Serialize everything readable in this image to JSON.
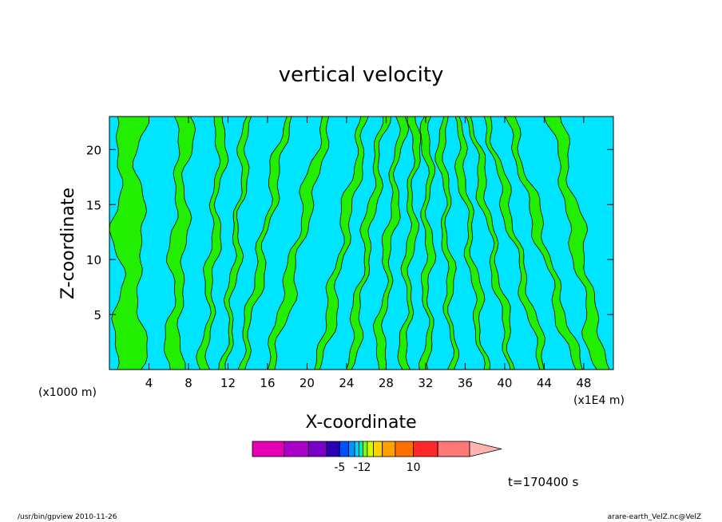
{
  "chart_data": {
    "type": "contour",
    "title": "vertical velocity",
    "xlabel": "X-coordinate",
    "ylabel": "Z-coordinate",
    "x_unit_left": "(x1000 m)",
    "x_unit_right": "(x1E4 m)",
    "x_range": [
      0,
      51
    ],
    "y_range": [
      0,
      23
    ],
    "x_ticks": [
      4,
      8,
      12,
      16,
      20,
      24,
      28,
      32,
      36,
      40,
      44,
      48
    ],
    "y_ticks": [
      5,
      10,
      15,
      20
    ],
    "time_label": "t=170400 s",
    "colors": {
      "negative": "#00e5ff",
      "positive": "#22ee00",
      "contour_line": "#000000"
    },
    "colorbar": {
      "colors": [
        "#e600b4",
        "#aa00c8",
        "#7a00c8",
        "#2a00b4",
        "#0050ff",
        "#0096ff",
        "#00d2ff",
        "#00f0b4",
        "#78ff00",
        "#d2ff00",
        "#ffd200",
        "#ffa000",
        "#ff6e00",
        "#ff2828",
        "#ff7878",
        "#ffb4b4"
      ],
      "tick_labels": [
        {
          "label": "-5",
          "index": 3
        },
        {
          "label": "-1",
          "index": 6
        },
        {
          "label": "2",
          "index": 8
        },
        {
          "label": "10",
          "index": 12
        }
      ]
    },
    "bands": [
      {
        "x": 2,
        "w": 1.4,
        "amp": 1.0,
        "tilt": 0.0
      },
      {
        "x": 7,
        "w": 1.2,
        "amp": 0.6,
        "tilt": 0.05
      },
      {
        "x": 10.5,
        "w": 0.6,
        "amp": 0.7,
        "tilt": 0.08
      },
      {
        "x": 12.8,
        "w": 0.4,
        "amp": 0.8,
        "tilt": 0.1
      },
      {
        "x": 15.5,
        "w": 0.7,
        "amp": 0.6,
        "tilt": 0.2
      },
      {
        "x": 19,
        "w": 0.8,
        "amp": 0.7,
        "tilt": 0.25
      },
      {
        "x": 23.5,
        "w": 0.6,
        "amp": 0.8,
        "tilt": 0.2
      },
      {
        "x": 26,
        "w": 0.5,
        "amp": 0.8,
        "tilt": 0.15
      },
      {
        "x": 28.3,
        "w": 0.45,
        "amp": 0.9,
        "tilt": 0.1
      },
      {
        "x": 30.4,
        "w": 0.4,
        "amp": 0.9,
        "tilt": 0.05
      },
      {
        "x": 32.2,
        "w": 0.4,
        "amp": 0.9,
        "tilt": 0.0
      },
      {
        "x": 34.2,
        "w": 0.4,
        "amp": 0.8,
        "tilt": -0.05
      },
      {
        "x": 36.6,
        "w": 0.45,
        "amp": 0.8,
        "tilt": -0.12
      },
      {
        "x": 38.8,
        "w": 0.45,
        "amp": 0.8,
        "tilt": -0.18
      },
      {
        "x": 41.2,
        "w": 0.5,
        "amp": 0.8,
        "tilt": -0.25
      },
      {
        "x": 44,
        "w": 0.7,
        "amp": 0.7,
        "tilt": -0.3
      },
      {
        "x": 47.5,
        "w": 1.0,
        "amp": 0.7,
        "tilt": -0.2
      }
    ]
  },
  "footer": {
    "left": "/usr/bin/gpview   2010-11-26",
    "right": "arare-earth_VelZ.nc@VelZ"
  }
}
